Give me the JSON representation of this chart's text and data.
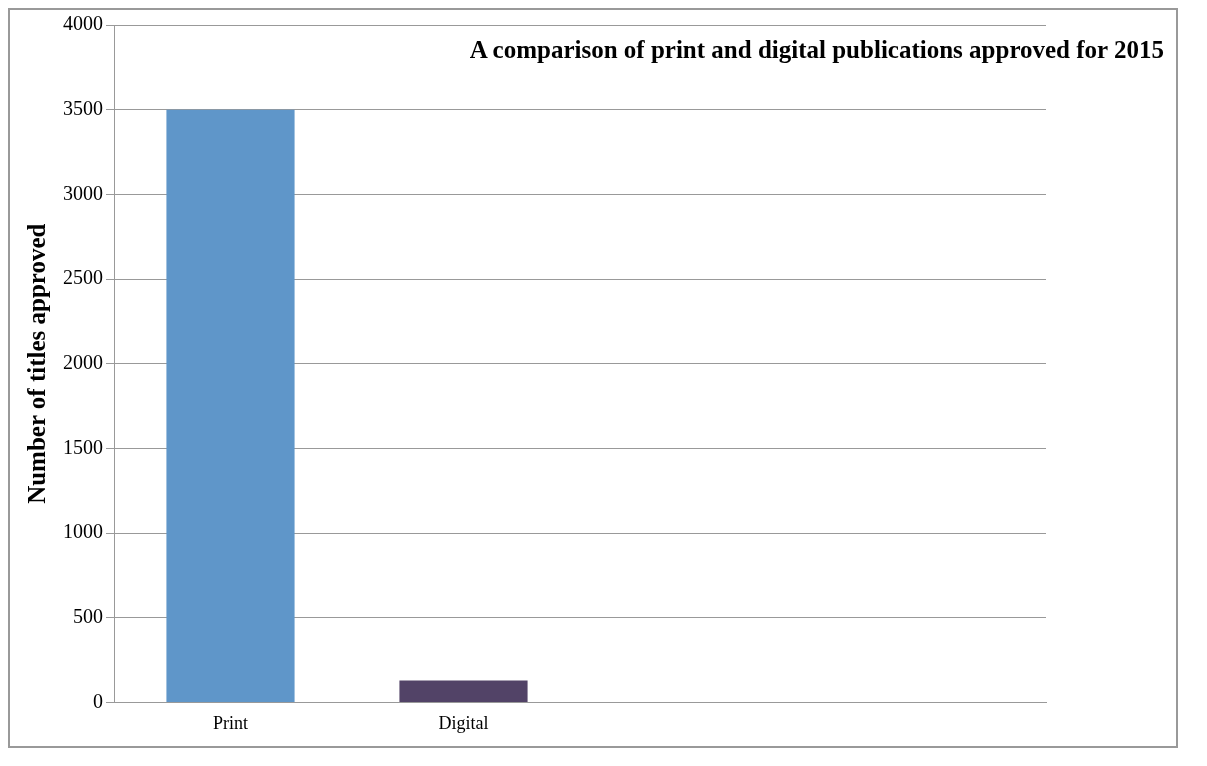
{
  "chart_data": {
    "type": "bar",
    "title": "A comparison of print and digital publications approved for 2015",
    "ylabel": "Number of titles approved",
    "categories": [
      "Print",
      "Digital",
      null,
      null
    ],
    "values": [
      3500,
      130,
      null,
      null
    ],
    "colors": [
      "#5f96c9",
      "#524367",
      "#5f96c9",
      "#5f96c9"
    ],
    "ylim": [
      0,
      4000
    ],
    "yticks": [
      0,
      500,
      1000,
      1500,
      2000,
      2500,
      3000,
      3500,
      4000
    ],
    "grid": "y",
    "legend": false
  }
}
